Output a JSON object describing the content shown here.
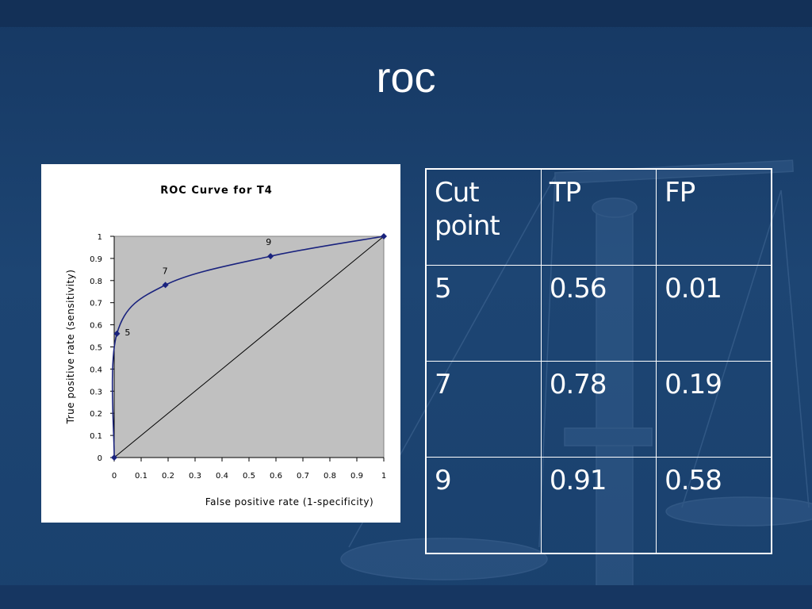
{
  "slide": {
    "title": "roc"
  },
  "chart_data": {
    "type": "line",
    "title": "ROC Curve for T4",
    "xlabel": "False positive rate (1-specificity)",
    "ylabel": "True positive rate (sensitivity)",
    "xlim": [
      0,
      1
    ],
    "ylim": [
      0,
      1
    ],
    "x_ticks": [
      "0",
      "0.1",
      "0.2",
      "0.3",
      "0.4",
      "0.5",
      "0.6",
      "0.7",
      "0.8",
      "0.9",
      "1"
    ],
    "y_ticks": [
      "0",
      "0.1",
      "0.2",
      "0.3",
      "0.4",
      "0.5",
      "0.6",
      "0.7",
      "0.8",
      "0.9",
      "1"
    ],
    "series": [
      {
        "points": [
          {
            "x": 0,
            "y": 0
          },
          {
            "x": 0.01,
            "y": 0.56
          },
          {
            "x": 0.19,
            "y": 0.78
          },
          {
            "x": 0.58,
            "y": 0.91
          },
          {
            "x": 1,
            "y": 1
          }
        ],
        "color": "#1a237e"
      }
    ],
    "reference_line": {
      "from": [
        0,
        0
      ],
      "to": [
        1,
        1
      ],
      "color": "#000000"
    },
    "point_labels": [
      {
        "text": "5",
        "x": 0.01,
        "y": 0.56
      },
      {
        "text": "7",
        "x": 0.19,
        "y": 0.78
      },
      {
        "text": "9",
        "x": 0.58,
        "y": 0.91
      }
    ],
    "plot_background": "#c0c0c0",
    "grid": false,
    "legend": "none"
  },
  "table": {
    "headers": [
      "Cut point",
      "TP",
      "FP"
    ],
    "rows": [
      [
        "5",
        "0.56",
        "0.01"
      ],
      [
        "7",
        "0.78",
        "0.19"
      ],
      [
        "9",
        "0.91",
        "0.58"
      ]
    ]
  }
}
